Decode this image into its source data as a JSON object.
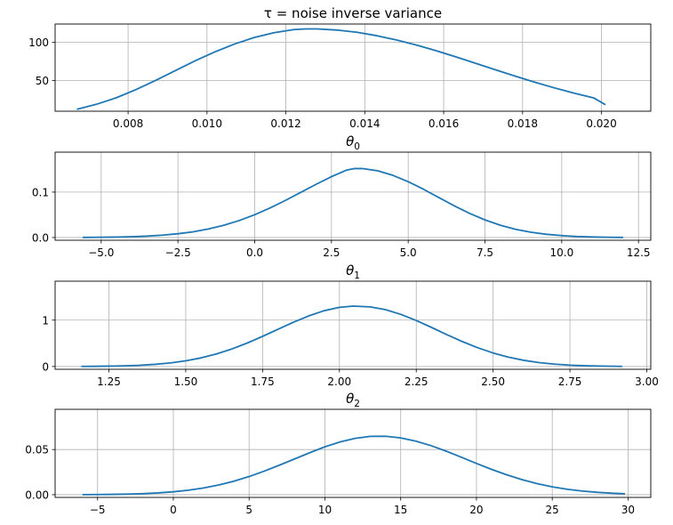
{
  "figure": {
    "background": "#ffffff",
    "line_color": "#1f77b4",
    "grid_color": "#b0b0b0"
  },
  "chart_data": [
    {
      "type": "line",
      "title": "τ = noise inverse variance",
      "xlabel": "",
      "ylabel": "",
      "grid": true,
      "xlim": [
        0.00615,
        0.02125
      ],
      "ylim": [
        10,
        124
      ],
      "xticks": [
        0.008,
        0.01,
        0.012,
        0.014,
        0.016,
        0.018,
        0.02
      ],
      "xtick_labels": [
        "0.008",
        "0.010",
        "0.012",
        "0.014",
        "0.016",
        "0.018",
        "0.020"
      ],
      "yticks": [
        50,
        100
      ],
      "ytick_labels": [
        "50",
        "100"
      ],
      "series": [
        {
          "x": [
            0.0067,
            0.0072,
            0.0077,
            0.0082,
            0.0087,
            0.0092,
            0.0097,
            0.0102,
            0.0107,
            0.0112,
            0.0117,
            0.0122,
            0.0125,
            0.0128,
            0.0133,
            0.0138,
            0.0143,
            0.0148,
            0.0153,
            0.0158,
            0.0163,
            0.0168,
            0.0173,
            0.0178,
            0.0183,
            0.0188,
            0.0193,
            0.0198,
            0.0201
          ],
          "y": [
            12.5,
            19.1,
            27.6,
            38.3,
            50.4,
            63.2,
            75.9,
            87.6,
            97.9,
            106.4,
            112.7,
            116.7,
            117.6,
            117.6,
            116.1,
            113.2,
            108.8,
            103.2,
            96.6,
            89.2,
            81.2,
            72.8,
            64.4,
            56.1,
            48.1,
            40.6,
            33.7,
            27.5,
            18.5
          ]
        }
      ]
    },
    {
      "type": "line",
      "title": "θ0",
      "title_main": "θ",
      "title_sub": "0",
      "xlabel": "",
      "ylabel": "",
      "grid": true,
      "xlim": [
        -6.5,
        12.9
      ],
      "ylim": [
        -0.006,
        0.188
      ],
      "xticks": [
        -5.0,
        -2.5,
        0.0,
        2.5,
        5.0,
        7.5,
        10.0,
        12.5
      ],
      "xtick_labels": [
        "−5.0",
        "−2.5",
        "0.0",
        "2.5",
        "5.0",
        "7.5",
        "10.0",
        "12.5"
      ],
      "yticks": [
        0.0,
        0.1
      ],
      "ytick_labels": [
        "0.0",
        "0.1"
      ],
      "series": [
        {
          "x": [
            -5.6,
            -5.0,
            -4.5,
            -4.0,
            -3.5,
            -3.0,
            -2.5,
            -2.0,
            -1.5,
            -1.0,
            -0.5,
            0.0,
            0.5,
            1.0,
            1.5,
            2.0,
            2.5,
            3.0,
            3.25,
            3.5,
            4.0,
            4.5,
            5.0,
            5.5,
            6.0,
            6.5,
            7.0,
            7.5,
            8.0,
            8.5,
            9.0,
            9.5,
            10.0,
            10.5,
            11.0,
            11.5,
            12.0
          ],
          "y": [
            0.0003,
            0.0006,
            0.0011,
            0.0019,
            0.0032,
            0.0053,
            0.0083,
            0.0127,
            0.0189,
            0.0271,
            0.0375,
            0.0502,
            0.0651,
            0.0817,
            0.0994,
            0.1172,
            0.1341,
            0.1486,
            0.152,
            0.1519,
            0.147,
            0.137,
            0.123,
            0.1062,
            0.088,
            0.0699,
            0.0532,
            0.0388,
            0.0271,
            0.0181,
            0.0116,
            0.0071,
            0.0042,
            0.0023,
            0.0012,
            0.0006,
            0.0003
          ]
        }
      ]
    },
    {
      "type": "line",
      "title": "θ1",
      "title_main": "θ",
      "title_sub": "1",
      "xlabel": "",
      "ylabel": "",
      "grid": true,
      "xlim": [
        1.075,
        3.013
      ],
      "ylim": [
        -0.06,
        1.84
      ],
      "xticks": [
        1.25,
        1.5,
        1.75,
        2.0,
        2.25,
        2.5,
        2.75,
        3.0
      ],
      "xtick_labels": [
        "1.25",
        "1.50",
        "1.75",
        "2.00",
        "2.25",
        "2.50",
        "2.75",
        "3.00"
      ],
      "yticks": [
        0,
        1
      ],
      "ytick_labels": [
        "0",
        "1"
      ],
      "series": [
        {
          "x": [
            1.16,
            1.2,
            1.25,
            1.3,
            1.35,
            1.4,
            1.45,
            1.5,
            1.55,
            1.6,
            1.65,
            1.7,
            1.75,
            1.8,
            1.85,
            1.9,
            1.95,
            2.0,
            2.045,
            2.1,
            2.15,
            2.2,
            2.25,
            2.3,
            2.35,
            2.4,
            2.45,
            2.5,
            2.55,
            2.6,
            2.65,
            2.7,
            2.75,
            2.8,
            2.85,
            2.92
          ],
          "y": [
            0.002,
            0.004,
            0.008,
            0.015,
            0.027,
            0.047,
            0.077,
            0.122,
            0.186,
            0.271,
            0.378,
            0.506,
            0.65,
            0.802,
            0.953,
            1.091,
            1.203,
            1.277,
            1.303,
            1.286,
            1.225,
            1.124,
            0.992,
            0.842,
            0.686,
            0.537,
            0.404,
            0.291,
            0.201,
            0.133,
            0.084,
            0.051,
            0.029,
            0.016,
            0.009,
            0.003
          ]
        }
      ]
    },
    {
      "type": "line",
      "title": "θ2",
      "title_main": "θ",
      "title_sub": "2",
      "xlabel": "",
      "ylabel": "",
      "grid": true,
      "xlim": [
        -7.8,
        31.5
      ],
      "ylim": [
        -0.003,
        0.0945
      ],
      "xticks": [
        -5,
        0,
        5,
        10,
        15,
        20,
        25,
        30
      ],
      "xtick_labels": [
        "−5",
        "0",
        "5",
        "10",
        "15",
        "20",
        "25",
        "30"
      ],
      "yticks": [
        0.0,
        0.05
      ],
      "ytick_labels": [
        "0.00",
        "0.05"
      ],
      "series": [
        {
          "x": [
            -6.0,
            -5.0,
            -4.0,
            -3.0,
            -2.0,
            -1.0,
            0.0,
            1.0,
            2.0,
            3.0,
            4.0,
            5.0,
            6.0,
            7.0,
            8.0,
            9.0,
            10.0,
            11.0,
            12.0,
            13.0,
            14.0,
            15.0,
            16.0,
            17.0,
            18.0,
            19.0,
            20.0,
            21.0,
            22.0,
            23.0,
            24.0,
            25.0,
            26.0,
            27.0,
            28.0,
            29.0,
            29.8
          ],
          "y": [
            0.0001,
            0.0002,
            0.0004,
            0.0007,
            0.0012,
            0.002,
            0.0032,
            0.005,
            0.0075,
            0.0108,
            0.015,
            0.0201,
            0.0261,
            0.0327,
            0.0396,
            0.0465,
            0.053,
            0.0584,
            0.0624,
            0.0646,
            0.0647,
            0.0629,
            0.0593,
            0.0543,
            0.0482,
            0.0415,
            0.0346,
            0.028,
            0.022,
            0.0167,
            0.0123,
            0.0087,
            0.006,
            0.004,
            0.0026,
            0.0016,
            0.0011
          ]
        }
      ]
    }
  ]
}
